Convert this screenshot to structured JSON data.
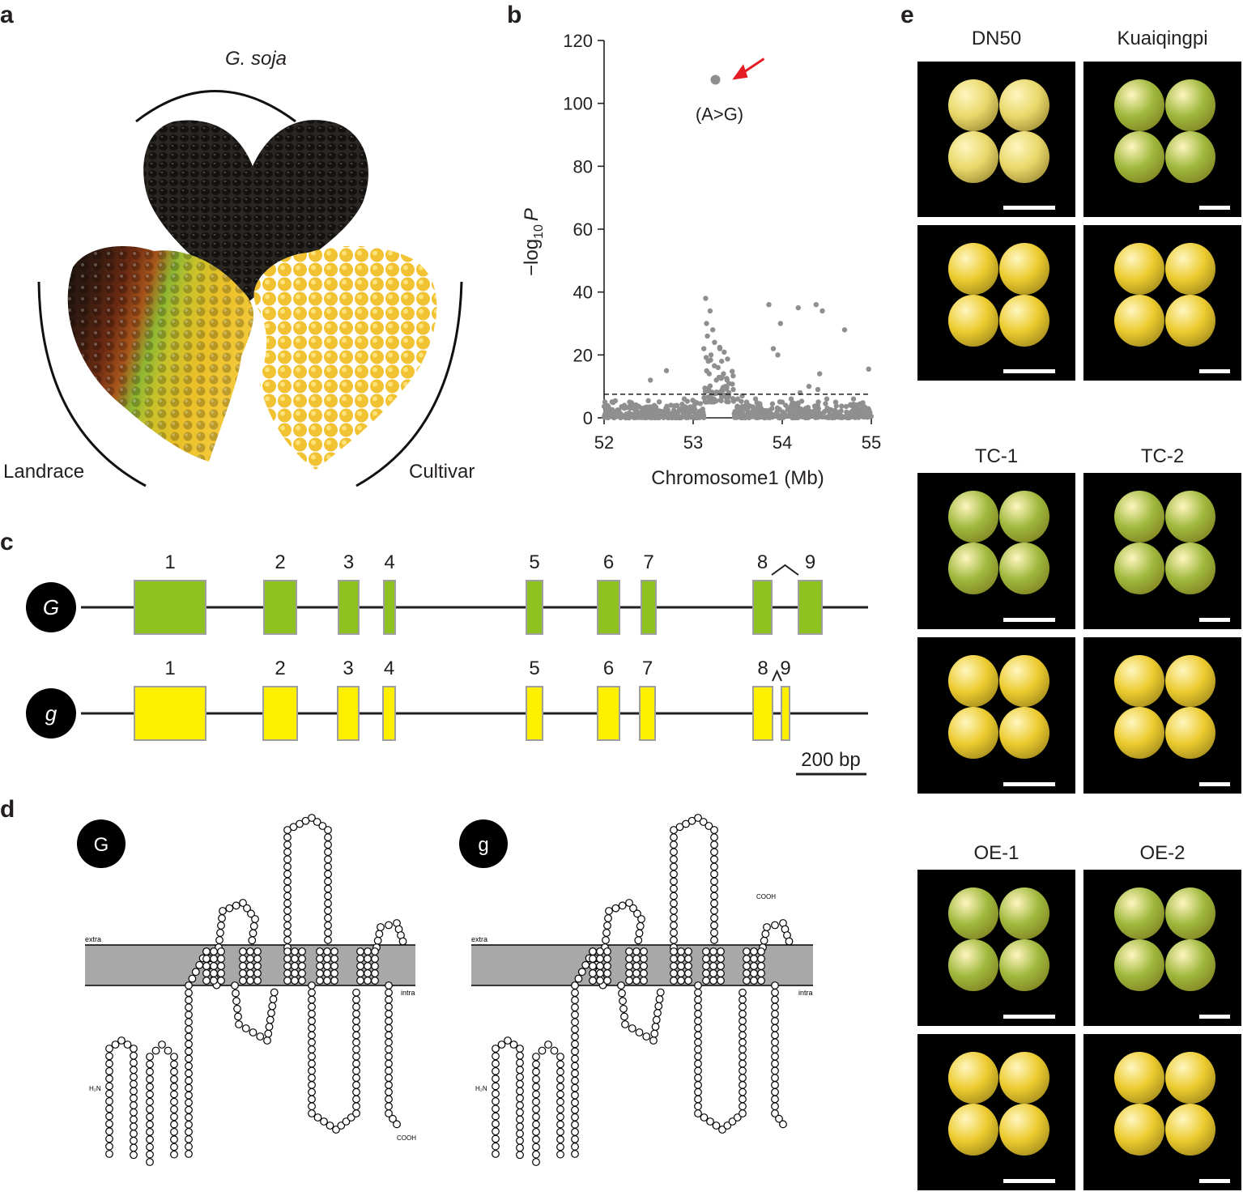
{
  "panel_labels": {
    "a": "a",
    "b": "b",
    "c": "c",
    "d": "d",
    "e": "e"
  },
  "panel_a": {
    "top_label": "G. soja",
    "left_label": "Landrace",
    "right_label": "Cultivar"
  },
  "panel_b": {
    "chart_data": {
      "type": "scatter",
      "title": "",
      "xlabel": "Chromosome1 (Mb)",
      "ylabel_main": "−log",
      "ylabel_sub": "10",
      "ylabel_italic": "P",
      "xlim": [
        52,
        55
      ],
      "ylim": [
        0,
        120
      ],
      "xticks": [
        "52",
        "53",
        "54",
        "55"
      ],
      "yticks": [
        "0",
        "20",
        "40",
        "60",
        "80",
        "100",
        "120"
      ],
      "threshold": 7.5,
      "top_hit": {
        "x": 53.25,
        "y": 107.5,
        "label": "(A>G)"
      },
      "points": [
        [
          52.05,
          1.8
        ],
        [
          52.15,
          2.5
        ],
        [
          52.25,
          1.2
        ],
        [
          52.35,
          3.0
        ],
        [
          52.45,
          2.2
        ],
        [
          52.52,
          12.0
        ],
        [
          52.55,
          3.5
        ],
        [
          52.65,
          2.0
        ],
        [
          52.7,
          15.0
        ],
        [
          52.75,
          4.0
        ],
        [
          52.85,
          2.8
        ],
        [
          52.9,
          6.0
        ],
        [
          52.95,
          3.2
        ],
        [
          53.02,
          5.0
        ],
        [
          53.08,
          4.5
        ],
        [
          53.12,
          22.0
        ],
        [
          53.14,
          38.0
        ],
        [
          53.15,
          30.0
        ],
        [
          53.16,
          26.0
        ],
        [
          53.17,
          18.0
        ],
        [
          53.18,
          14.0
        ],
        [
          53.19,
          34.0
        ],
        [
          53.2,
          20.0
        ],
        [
          53.22,
          28.0
        ],
        [
          53.24,
          24.0
        ],
        [
          53.26,
          12.0
        ],
        [
          53.28,
          16.0
        ],
        [
          53.3,
          22.0
        ],
        [
          53.32,
          18.0
        ],
        [
          53.34,
          14.0
        ],
        [
          53.36,
          10.0
        ],
        [
          53.38,
          12.0
        ],
        [
          53.4,
          8.0
        ],
        [
          53.45,
          9.0
        ],
        [
          53.5,
          6.0
        ],
        [
          53.55,
          7.0
        ],
        [
          53.6,
          5.0
        ],
        [
          53.7,
          6.0
        ],
        [
          53.75,
          4.0
        ],
        [
          53.85,
          36.0
        ],
        [
          53.9,
          22.0
        ],
        [
          53.95,
          20.0
        ],
        [
          53.98,
          30.0
        ],
        [
          54.0,
          5.0
        ],
        [
          54.1,
          6.0
        ],
        [
          54.18,
          35.0
        ],
        [
          54.2,
          8.0
        ],
        [
          54.3,
          10.0
        ],
        [
          54.38,
          36.0
        ],
        [
          54.4,
          9.0
        ],
        [
          54.42,
          14.0
        ],
        [
          54.45,
          34.0
        ],
        [
          54.5,
          6.0
        ],
        [
          54.6,
          5.0
        ],
        [
          54.7,
          28.0
        ],
        [
          54.8,
          6.0
        ],
        [
          54.9,
          4.0
        ],
        [
          54.97,
          15.5
        ]
      ]
    }
  },
  "panel_c": {
    "gene_G": "G",
    "gene_g": "g",
    "exon_numbers": [
      "1",
      "2",
      "3",
      "4",
      "5",
      "6",
      "7",
      "8",
      "9"
    ],
    "scale_label": "200 bp",
    "colors": {
      "G_exon": "#8dc21f",
      "g_exon": "#fff000",
      "exon_edge": "#9e9e9e"
    }
  },
  "panel_d": {
    "protein_G": "G",
    "protein_g": "g",
    "extra_label": "extra",
    "intra_label": "intra",
    "n_term": "H₂N",
    "c_term": "COOH",
    "membrane_color": "#a8a8a8"
  },
  "panel_e": {
    "group1": [
      "DN50",
      "Kuaiqingpi"
    ],
    "group2": [
      "TC-1",
      "TC-2"
    ],
    "group3": [
      "OE-1",
      "OE-2"
    ],
    "colors": {
      "green_seed": "#9fb83c",
      "yellow_seed": "#eccb2e",
      "pale_seed": "#e9d86a"
    }
  }
}
